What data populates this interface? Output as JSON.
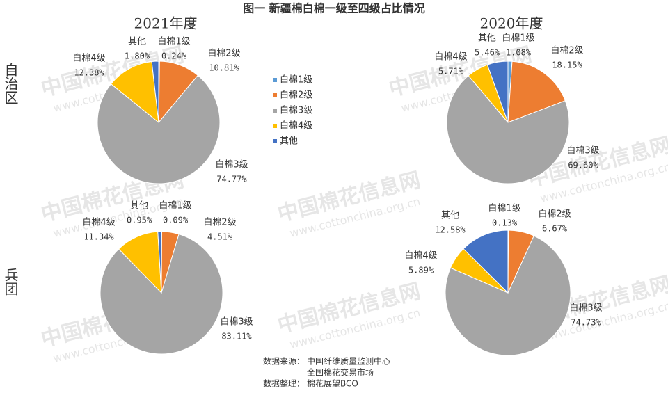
{
  "title": "图一  新疆棉白棉一级至四级占比情况",
  "column_titles": [
    "2021年度",
    "2020年度"
  ],
  "row_titles": [
    "自治区",
    "兵团"
  ],
  "watermark": [
    "中国棉花信息网",
    "www.cottonchina.org.cn"
  ],
  "source": {
    "label": "数据来源：",
    "lines": [
      "中国纤维质量监测中心",
      "全国棉花交易市场"
    ]
  },
  "compiled": {
    "label": "数据整理：",
    "text": "棉花展望BCO"
  },
  "chart_data": [
    {
      "type": "pie",
      "categories": [
        "白棉1级",
        "白棉2级",
        "白棉3级",
        "白棉4级",
        "其他"
      ],
      "values": [
        0.24,
        10.81,
        74.77,
        12.38,
        1.8
      ],
      "value_labels": [
        "0.24%",
        "10.81%",
        "74.77%",
        "12.38%",
        "1.80%"
      ],
      "colors": [
        "#5b9bd5",
        "#ed7d31",
        "#a5a5a5",
        "#ffc000",
        "#4472c4"
      ]
    },
    {
      "type": "pie",
      "categories": [
        "白棉1级",
        "白棉2级",
        "白棉3级",
        "白棉4级",
        "其他"
      ],
      "values": [
        1.08,
        18.15,
        69.6,
        5.71,
        5.46
      ],
      "value_labels": [
        "1.08%",
        "18.15%",
        "69.60%",
        "5.71%",
        "5.46%"
      ],
      "colors": [
        "#5b9bd5",
        "#ed7d31",
        "#a5a5a5",
        "#ffc000",
        "#4472c4"
      ]
    },
    {
      "type": "pie",
      "categories": [
        "白棉1级",
        "白棉2级",
        "白棉3级",
        "白棉4级",
        "其他"
      ],
      "values": [
        0.09,
        4.51,
        83.11,
        11.34,
        0.95
      ],
      "value_labels": [
        "0.09%",
        "4.51%",
        "83.11%",
        "11.34%",
        "0.95%"
      ],
      "colors": [
        "#5b9bd5",
        "#ed7d31",
        "#a5a5a5",
        "#ffc000",
        "#4472c4"
      ]
    },
    {
      "type": "pie",
      "categories": [
        "白棉1级",
        "白棉2级",
        "白棉3级",
        "白棉4级",
        "其他"
      ],
      "values": [
        0.13,
        6.67,
        74.73,
        5.89,
        12.58
      ],
      "value_labels": [
        "0.13%",
        "6.67%",
        "74.73%",
        "5.89%",
        "12.58%"
      ],
      "colors": [
        "#5b9bd5",
        "#ed7d31",
        "#a5a5a5",
        "#ffc000",
        "#4472c4"
      ]
    }
  ]
}
